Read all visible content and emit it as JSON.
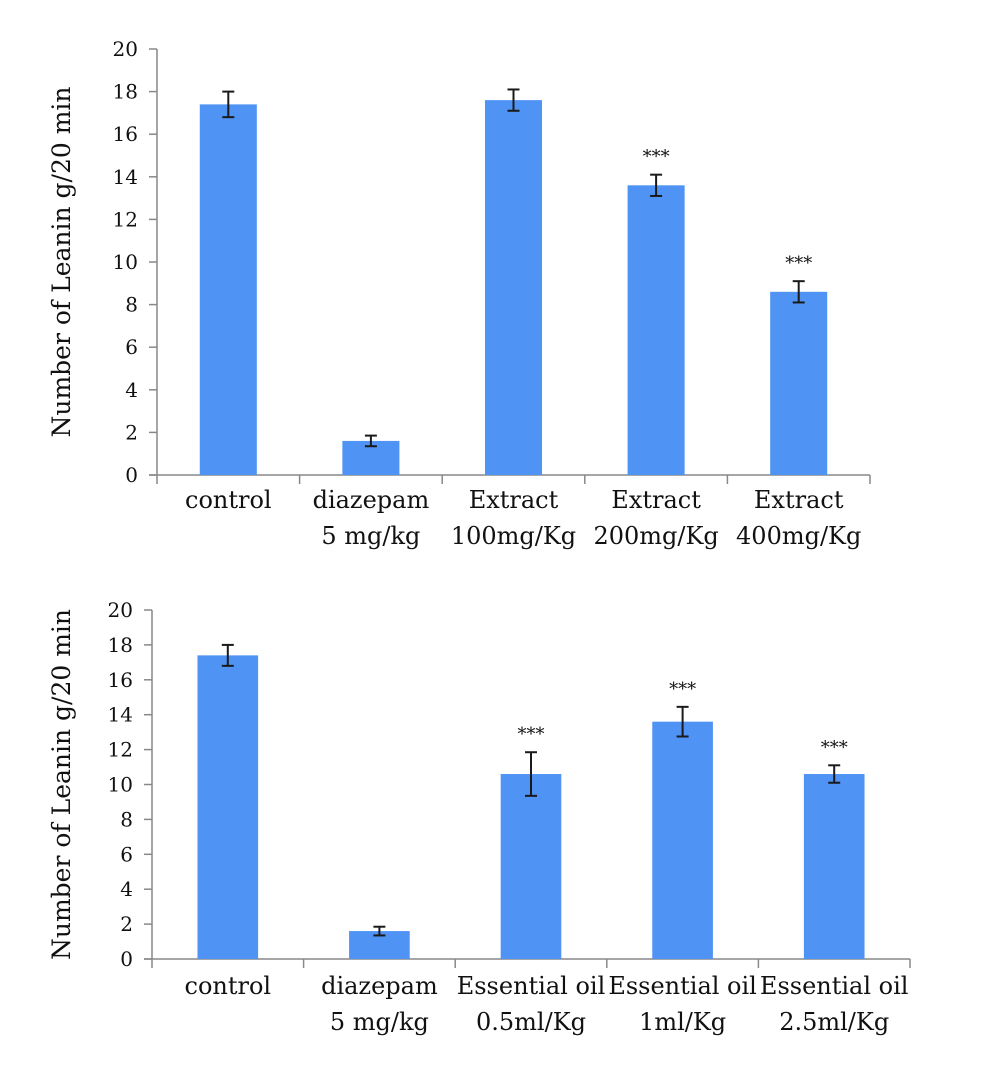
{
  "chart_data": [
    {
      "type": "bar",
      "ylabel": "Number of Leanin g/20 min",
      "ylim": [
        0,
        20
      ],
      "yticks": [
        0,
        2,
        4,
        6,
        8,
        10,
        12,
        14,
        16,
        18,
        20
      ],
      "grid": false,
      "categories": [
        [
          "control"
        ],
        [
          "diazepam",
          "5 mg/kg"
        ],
        [
          "Extract",
          "100mg/Kg"
        ],
        [
          "Extract",
          "200mg/Kg"
        ],
        [
          "Extract",
          "400mg/Kg"
        ]
      ],
      "values": [
        17.4,
        1.6,
        17.6,
        13.6,
        8.6
      ],
      "errors": [
        0.6,
        0.25,
        0.5,
        0.5,
        0.5
      ],
      "annotations": [
        "",
        "",
        "",
        "***",
        "***"
      ],
      "bar_color": "#4f93f5"
    },
    {
      "type": "bar",
      "ylabel": "Number of Leanin g/20 min",
      "ylim": [
        0,
        20
      ],
      "yticks": [
        0,
        2,
        4,
        6,
        8,
        10,
        12,
        14,
        16,
        18,
        20
      ],
      "grid": false,
      "categories": [
        [
          "control"
        ],
        [
          "diazepam",
          "5 mg/kg"
        ],
        [
          "Essential oil",
          "0.5ml/Kg"
        ],
        [
          "Essential oil",
          "1ml/Kg"
        ],
        [
          "Essential oil",
          "2.5ml/Kg"
        ]
      ],
      "values": [
        17.4,
        1.6,
        10.6,
        13.6,
        10.6
      ],
      "errors": [
        0.6,
        0.25,
        1.25,
        0.85,
        0.5
      ],
      "annotations": [
        "",
        "",
        "***",
        "***",
        "***"
      ],
      "bar_color": "#4f93f5"
    }
  ]
}
